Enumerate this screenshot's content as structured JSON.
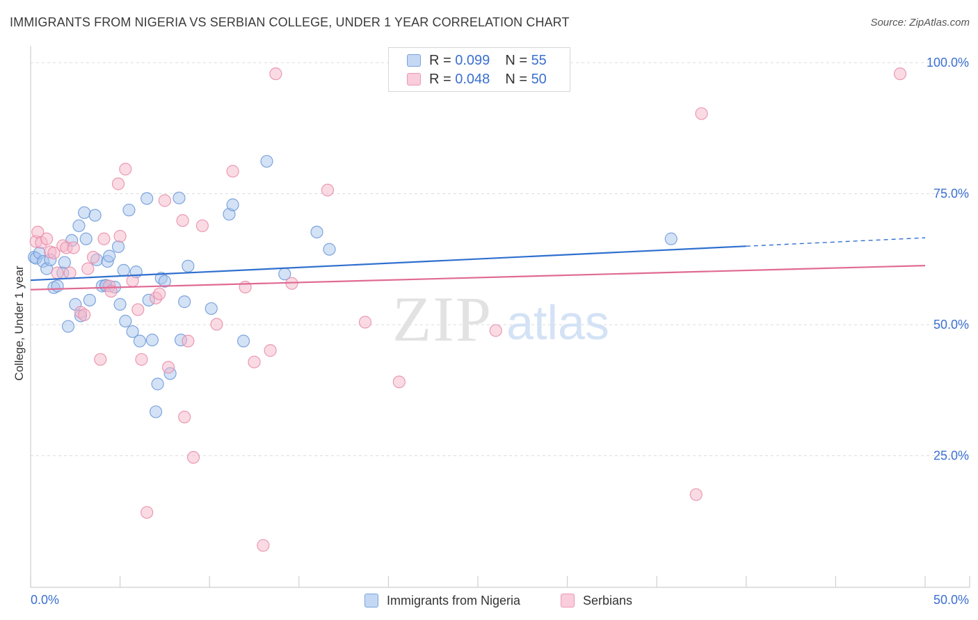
{
  "title": "IMMIGRANTS FROM NIGERIA VS SERBIAN COLLEGE, UNDER 1 YEAR CORRELATION CHART",
  "source": "Source: ZipAtlas.com",
  "watermark": {
    "zip": "ZIP",
    "atlas": "atlas"
  },
  "legend": {
    "nigeria": {
      "r_label": "R = ",
      "r_value": "0.099",
      "n_label": "N = ",
      "n_value": "55"
    },
    "serbians": {
      "r_label": "R = ",
      "r_value": "0.048",
      "n_label": "N = ",
      "n_value": "50"
    }
  },
  "colors": {
    "nigeria_fill": "#a9c6ee",
    "nigeria_stroke": "#6a96d8",
    "nigeria_line": "#2f6fce",
    "serbians_fill": "#f6b8ca",
    "serbians_stroke": "#e88aa8",
    "serbians_line": "#e06a93",
    "tick_label": "#3a6fd0",
    "grid": "#dcdcdc"
  },
  "chart_data": {
    "type": "scatter",
    "title": "IMMIGRANTS FROM NIGERIA VS SERBIAN COLLEGE, UNDER 1 YEAR CORRELATION CHART",
    "xlabel": "",
    "ylabel": "College, Under 1 year",
    "xlim": [
      0,
      50
    ],
    "ylim": [
      2,
      104
    ],
    "x_tick_labels": [
      "0.0%",
      "50.0%"
    ],
    "y_ticks": [
      25,
      50,
      75,
      100
    ],
    "y_tick_labels": [
      "25.0%",
      "50.0%",
      "75.0%",
      "100.0%"
    ],
    "legend_position": "bottom-center",
    "series": [
      {
        "name": "Immigrants from Nigeria",
        "points": [
          [
            0.2,
            65
          ],
          [
            0.3,
            64.8
          ],
          [
            0.5,
            65.8
          ],
          [
            0.7,
            64.2
          ],
          [
            0.9,
            62.8
          ],
          [
            1.1,
            64.5
          ],
          [
            1.3,
            59.2
          ],
          [
            1.5,
            59.5
          ],
          [
            1.8,
            62
          ],
          [
            1.9,
            64
          ],
          [
            2.1,
            51.8
          ],
          [
            2.3,
            68.2
          ],
          [
            2.5,
            56
          ],
          [
            2.7,
            71
          ],
          [
            2.8,
            53.8
          ],
          [
            3.0,
            73.5
          ],
          [
            3.1,
            68.5
          ],
          [
            3.3,
            56.8
          ],
          [
            3.6,
            73
          ],
          [
            3.7,
            64.5
          ],
          [
            4.0,
            59.5
          ],
          [
            4.2,
            59.6
          ],
          [
            4.3,
            64.2
          ],
          [
            4.4,
            65.2
          ],
          [
            4.7,
            59.3
          ],
          [
            4.9,
            67
          ],
          [
            5.0,
            56
          ],
          [
            5.2,
            62.5
          ],
          [
            5.3,
            52.8
          ],
          [
            5.5,
            74
          ],
          [
            5.7,
            50.8
          ],
          [
            5.9,
            62.2
          ],
          [
            6.1,
            49
          ],
          [
            6.5,
            76.2
          ],
          [
            6.6,
            56.8
          ],
          [
            6.8,
            49.2
          ],
          [
            7.0,
            35.5
          ],
          [
            7.1,
            40.8
          ],
          [
            7.3,
            61
          ],
          [
            7.5,
            60.4
          ],
          [
            7.8,
            42.8
          ],
          [
            8.3,
            76.3
          ],
          [
            8.4,
            49.2
          ],
          [
            8.6,
            56.5
          ],
          [
            8.8,
            63.3
          ],
          [
            10.1,
            55.2
          ],
          [
            11.1,
            73.2
          ],
          [
            11.3,
            75
          ],
          [
            11.9,
            49
          ],
          [
            13.2,
            83.3
          ],
          [
            14.2,
            61.8
          ],
          [
            16.0,
            69.8
          ],
          [
            16.7,
            66.5
          ],
          [
            35.8,
            68.5
          ],
          [
            4.2,
            59.6
          ]
        ],
        "trend": {
          "x0": 0,
          "y0": 60.6,
          "x1": 40,
          "y1": 67.1,
          "dashed_x1": 50,
          "dashed_y1": 68.7
        }
      },
      {
        "name": "Serbians",
        "points": [
          [
            0.3,
            68
          ],
          [
            0.4,
            69.8
          ],
          [
            0.6,
            67.8
          ],
          [
            0.9,
            68.5
          ],
          [
            1.1,
            66
          ],
          [
            1.3,
            65.8
          ],
          [
            1.5,
            62
          ],
          [
            1.8,
            67.2
          ],
          [
            2.0,
            66.8
          ],
          [
            2.2,
            62
          ],
          [
            2.4,
            66.8
          ],
          [
            2.8,
            54.5
          ],
          [
            3.0,
            54
          ],
          [
            3.2,
            62.8
          ],
          [
            3.5,
            65
          ],
          [
            3.9,
            45.5
          ],
          [
            4.1,
            68.5
          ],
          [
            4.4,
            59.5
          ],
          [
            4.5,
            58.5
          ],
          [
            4.9,
            79
          ],
          [
            5.0,
            69
          ],
          [
            5.3,
            81.8
          ],
          [
            5.7,
            60.5
          ],
          [
            6.0,
            55
          ],
          [
            6.2,
            45.5
          ],
          [
            6.5,
            16.3
          ],
          [
            7.0,
            57.2
          ],
          [
            7.2,
            58
          ],
          [
            7.5,
            75.8
          ],
          [
            7.7,
            44
          ],
          [
            8.5,
            72
          ],
          [
            8.6,
            34.5
          ],
          [
            8.8,
            49
          ],
          [
            9.1,
            26.8
          ],
          [
            9.6,
            71
          ],
          [
            10.4,
            52.2
          ],
          [
            11.3,
            81.4
          ],
          [
            12.0,
            59.3
          ],
          [
            12.5,
            45
          ],
          [
            13.0,
            10
          ],
          [
            13.4,
            47.2
          ],
          [
            13.7,
            100
          ],
          [
            14.6,
            60
          ],
          [
            16.6,
            77.8
          ],
          [
            18.7,
            52.6
          ],
          [
            20.6,
            41.2
          ],
          [
            26.0,
            51
          ],
          [
            37.2,
            19.7
          ],
          [
            37.5,
            92.4
          ],
          [
            48.6,
            100
          ]
        ],
        "trend": {
          "x0": 0,
          "y0": 58.8,
          "x1": 50,
          "y1": 63.4
        }
      }
    ]
  }
}
